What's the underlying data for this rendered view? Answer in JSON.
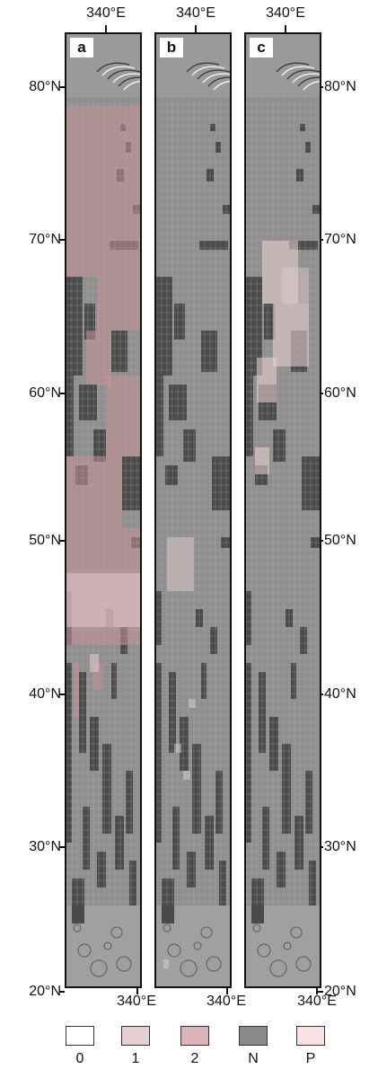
{
  "panels": [
    {
      "id": "a",
      "label": "a"
    },
    {
      "id": "b",
      "label": "b"
    },
    {
      "id": "c",
      "label": "c"
    }
  ],
  "lat_labels": [
    "80°N",
    "70°N",
    "60°N",
    "50°N",
    "40°N",
    "30°N",
    "20°N"
  ],
  "lon_label": "340°E",
  "legend": [
    {
      "label": "0",
      "color": "#ffffff"
    },
    {
      "label": "1",
      "color": "#e6cfd0"
    },
    {
      "label": "2",
      "color": "#dcb3b6"
    },
    {
      "label": "N",
      "color": "#8a8a8a"
    },
    {
      "label": "P",
      "color": "#f8e2e4"
    }
  ],
  "colors": {
    "base_gray": "#8f8f8f",
    "no_data": "#4a4a4a",
    "class_1_overlay": "#e6cfd0",
    "class_2_overlay": "#c98f95",
    "class_p_overlay": "#f3d5d9",
    "grid": "#b9b9b9",
    "frame": "#111111"
  }
}
